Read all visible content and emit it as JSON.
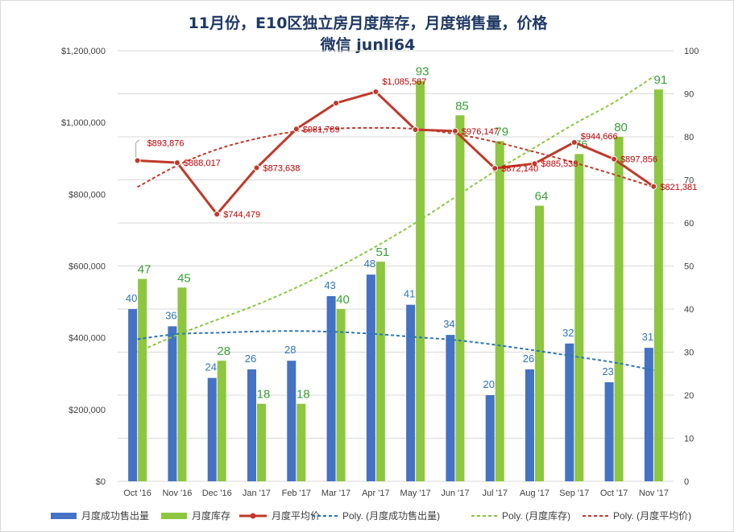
{
  "chart_data": {
    "type": "bar",
    "title": "11月份，E10区独立房月度库存，月度销售量，价格",
    "subtitle": "微信 junli64",
    "categories": [
      "Oct '16",
      "Nov '16",
      "Dec '16",
      "Jan '17",
      "Feb '17",
      "Mar '17",
      "Apr '17",
      "May '17",
      "Jun '17",
      "Jul '17",
      "Aug '17",
      "Sep '17",
      "Oct '17",
      "Nov '17"
    ],
    "series": [
      {
        "name": "月度成功售出量",
        "kind": "bar",
        "axis": "right",
        "color": "#4472c4",
        "values": [
          40,
          36,
          24,
          26,
          28,
          43,
          48,
          41,
          34,
          20,
          26,
          32,
          23,
          31
        ]
      },
      {
        "name": "月度库存",
        "kind": "bar",
        "axis": "right",
        "color": "#8dc63f",
        "values": [
          47,
          45,
          28,
          18,
          18,
          40,
          51,
          93,
          85,
          79,
          64,
          76,
          80,
          91
        ]
      },
      {
        "name": "月度平均价",
        "kind": "line",
        "axis": "left",
        "color": "#c0392b",
        "values": [
          893876,
          888017,
          744479,
          873638,
          981789,
          1054000,
          1085587,
          980000,
          976147,
          872140,
          885538,
          944666,
          897856,
          821381
        ]
      }
    ],
    "line_labels": [
      "$893,876",
      "$888,017",
      "$744,479",
      "$873,638",
      "$981,789",
      "",
      "$1,085,587",
      "",
      "$976,147",
      "$872,140",
      "$885,538",
      "$944,666",
      "$897,856",
      "$821,381"
    ],
    "trendlines": [
      {
        "name": "Poly. (月度成功售出量)",
        "color": "#2e75b6",
        "axis": "right",
        "values": [
          33,
          34.2,
          34.5,
          34.8,
          34.9,
          34.7,
          34.2,
          33.5,
          32.8,
          31.7,
          30.4,
          29,
          27.6,
          25.8
        ]
      },
      {
        "name": "Poly. (月度库存)",
        "color": "#8dc63f",
        "axis": "right",
        "values": [
          30,
          34,
          37.5,
          41,
          45,
          49.5,
          54.5,
          60,
          66,
          72,
          77.5,
          83,
          88,
          94
        ]
      },
      {
        "name": "Poly. (月度平均价)",
        "color": "#c0392b",
        "axis": "left",
        "values": [
          820000,
          880000,
          925000,
          955000,
          975000,
          983000,
          985000,
          982000,
          968000,
          946000,
          918000,
          888000,
          855000,
          820000
        ]
      }
    ],
    "y_left": {
      "min": 0,
      "max": 1200000,
      "ticks": [
        "$0",
        "$200,000",
        "$400,000",
        "$600,000",
        "$800,000",
        "$1,000,000",
        "$1,200,000"
      ]
    },
    "y_right": {
      "min": 0,
      "max": 100,
      "ticks": [
        "0",
        "10",
        "20",
        "30",
        "40",
        "50",
        "60",
        "70",
        "80",
        "90",
        "100"
      ]
    },
    "legend_position": "bottom",
    "grid": true
  }
}
